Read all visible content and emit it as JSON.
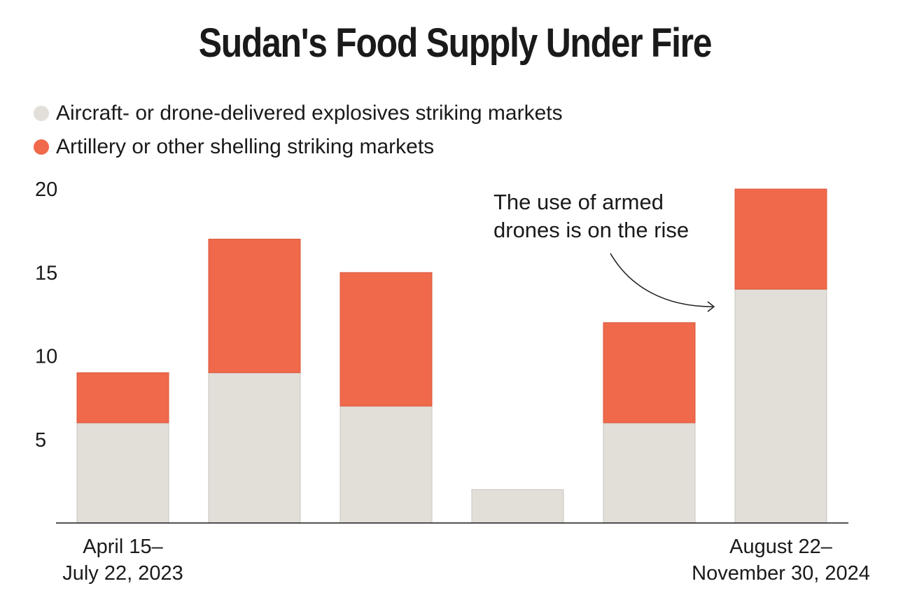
{
  "chart_data": {
    "type": "bar",
    "stacked": true,
    "title": "Sudan's Food Supply Under Fire",
    "categories": [
      "April 15–July 22, 2023",
      "",
      "",
      "",
      "",
      "August 22–November 30, 2024"
    ],
    "x_tick_labels": [
      {
        "index": 0,
        "lines": [
          "April 15–",
          "July 22, 2023"
        ]
      },
      {
        "index": 5,
        "lines": [
          "August 22–",
          "November 30, 2024"
        ]
      }
    ],
    "series": [
      {
        "name": "Aircraft- or drone-delivered explosives striking markets",
        "color": "#e2ded8",
        "values": [
          6,
          9,
          7,
          2,
          6,
          14
        ]
      },
      {
        "name": "Artillery or other shelling striking markets",
        "color": "#f0694b",
        "values": [
          3,
          8,
          8,
          0,
          6,
          6
        ]
      }
    ],
    "ylim": [
      0,
      20
    ],
    "yticks": [
      5,
      10,
      15,
      20
    ],
    "grid": false,
    "legend_position": "top-left",
    "annotation": {
      "lines": [
        "The use of armed",
        "drones is on the rise"
      ],
      "points_to_index": 5
    }
  }
}
